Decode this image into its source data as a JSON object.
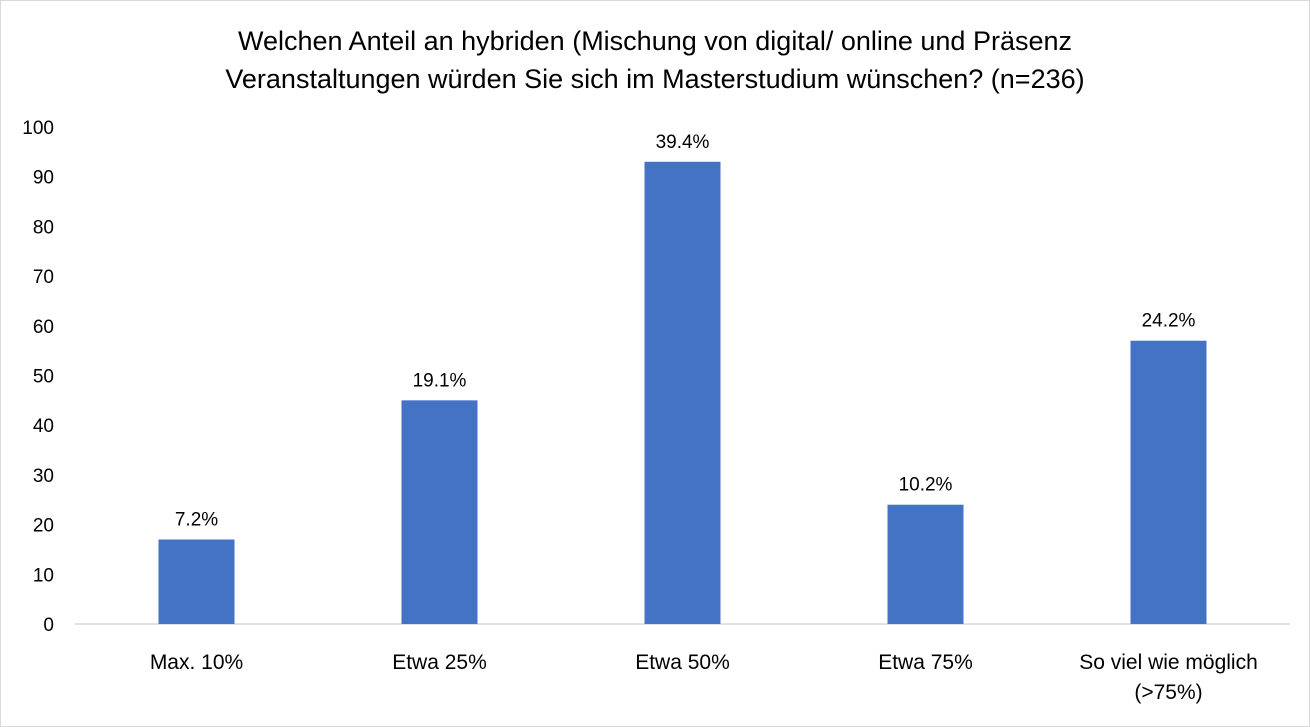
{
  "chart_data": {
    "type": "bar",
    "title_lines": [
      "Welchen Anteil an hybriden (Mischung von digital/ online und Präsenz",
      "Veranstaltungen würden Sie sich im Masterstudium wünschen? (n=236)"
    ],
    "categories": [
      [
        "Max. 10%"
      ],
      [
        "Etwa 25%"
      ],
      [
        "Etwa 50%"
      ],
      [
        "Etwa 75%"
      ],
      [
        "So viel wie möglich",
        "(>75%)"
      ]
    ],
    "values": [
      17,
      45,
      93,
      24,
      57
    ],
    "data_labels": [
      "7.2%",
      "19.1%",
      "39.4%",
      "10.2%",
      "24.2%"
    ],
    "ylim": [
      0,
      100
    ],
    "yticks": [
      "0",
      "10",
      "20",
      "30",
      "40",
      "50",
      "60",
      "70",
      "80",
      "90",
      "100"
    ],
    "bar_color": "#4472C4",
    "grid": false,
    "legend": "none"
  }
}
